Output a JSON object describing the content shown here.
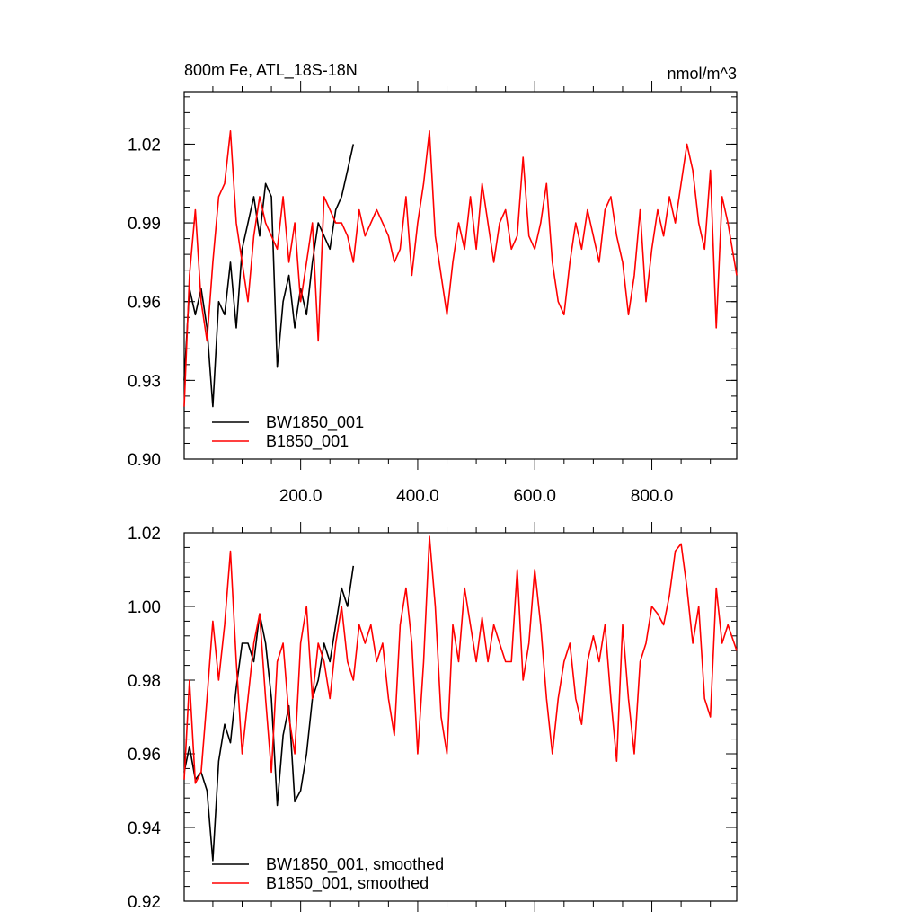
{
  "chart_data": [
    {
      "type": "line",
      "title": "800m Fe, ATL_18S-18N",
      "units": "nmol/m^3",
      "xlim": [
        1,
        945
      ],
      "ylim": [
        0.9,
        1.04
      ],
      "yticks": [
        0.9,
        0.93,
        0.96,
        0.99,
        1.02
      ],
      "ytick_labels": [
        "0.90",
        "0.93",
        "0.96",
        "0.99",
        "1.02"
      ],
      "xticks": [
        200,
        400,
        600,
        800
      ],
      "xtick_labels": [
        "200.0",
        "400.0",
        "600.0",
        "800.0"
      ],
      "legend": "bottom-left",
      "grid": false,
      "series": [
        {
          "name": "BW1850_001",
          "color": "#000000",
          "x": [
            1,
            10,
            20,
            30,
            40,
            50,
            60,
            70,
            80,
            90,
            100,
            110,
            120,
            130,
            140,
            150,
            160,
            170,
            180,
            190,
            200,
            210,
            220,
            230,
            240,
            250,
            260,
            270,
            280,
            290
          ],
          "y": [
            0.93,
            0.965,
            0.955,
            0.965,
            0.95,
            0.92,
            0.96,
            0.955,
            0.975,
            0.95,
            0.98,
            0.99,
            1.0,
            0.985,
            1.005,
            1.0,
            0.935,
            0.96,
            0.97,
            0.95,
            0.965,
            0.955,
            0.975,
            0.99,
            0.985,
            0.98,
            0.995,
            1.0,
            1.01,
            1.02
          ]
        },
        {
          "name": "B1850_001",
          "color": "#ff0000",
          "x": [
            1,
            10,
            20,
            30,
            40,
            50,
            60,
            70,
            80,
            90,
            100,
            110,
            120,
            130,
            140,
            150,
            160,
            170,
            180,
            190,
            200,
            210,
            220,
            230,
            240,
            250,
            260,
            270,
            280,
            290,
            300,
            310,
            320,
            330,
            340,
            350,
            360,
            370,
            380,
            390,
            400,
            410,
            420,
            430,
            440,
            450,
            460,
            470,
            480,
            490,
            500,
            510,
            520,
            530,
            540,
            550,
            560,
            570,
            580,
            590,
            600,
            610,
            620,
            630,
            640,
            650,
            660,
            670,
            680,
            690,
            700,
            710,
            720,
            730,
            740,
            750,
            760,
            770,
            780,
            790,
            800,
            810,
            820,
            830,
            840,
            850,
            860,
            870,
            880,
            890,
            900,
            910,
            920,
            930,
            945
          ],
          "y": [
            0.92,
            0.97,
            0.995,
            0.96,
            0.945,
            0.975,
            1.0,
            1.005,
            1.025,
            0.99,
            0.975,
            0.96,
            0.985,
            1.0,
            0.99,
            0.985,
            0.98,
            1.0,
            0.975,
            0.99,
            0.96,
            0.975,
            0.99,
            0.945,
            1.0,
            0.995,
            0.99,
            0.99,
            0.985,
            0.975,
            0.995,
            0.985,
            0.99,
            0.995,
            0.99,
            0.985,
            0.975,
            0.98,
            1.0,
            0.97,
            0.99,
            1.005,
            1.025,
            0.985,
            0.97,
            0.955,
            0.975,
            0.99,
            0.98,
            1.0,
            0.98,
            1.005,
            0.99,
            0.975,
            0.99,
            0.995,
            0.98,
            0.985,
            1.015,
            0.985,
            0.98,
            0.99,
            1.005,
            0.975,
            0.96,
            0.955,
            0.975,
            0.99,
            0.98,
            0.995,
            0.985,
            0.975,
            0.995,
            1.0,
            0.985,
            0.975,
            0.955,
            0.97,
            0.995,
            0.96,
            0.98,
            0.995,
            0.985,
            1.0,
            0.99,
            1.005,
            1.02,
            1.01,
            0.99,
            0.98,
            1.01,
            0.95,
            1.0,
            0.99,
            0.97
          ]
        }
      ]
    },
    {
      "type": "line",
      "xlim": [
        1,
        945
      ],
      "ylim": [
        0.92,
        1.02
      ],
      "yticks": [
        0.92,
        0.94,
        0.96,
        0.98,
        1.0,
        1.02
      ],
      "ytick_labels": [
        "0.92",
        "0.94",
        "0.96",
        "0.98",
        "1.00",
        "1.02"
      ],
      "legend": "bottom-left",
      "grid": false,
      "series": [
        {
          "name": "BW1850_001, smoothed",
          "color": "#000000",
          "x": [
            1,
            10,
            20,
            30,
            40,
            50,
            60,
            70,
            80,
            90,
            100,
            110,
            120,
            130,
            140,
            150,
            160,
            170,
            180,
            190,
            200,
            210,
            220,
            230,
            240,
            250,
            260,
            270,
            280,
            290
          ],
          "y": [
            0.955,
            0.962,
            0.953,
            0.955,
            0.95,
            0.931,
            0.958,
            0.968,
            0.963,
            0.978,
            0.99,
            0.99,
            0.985,
            0.998,
            0.99,
            0.975,
            0.946,
            0.965,
            0.973,
            0.947,
            0.95,
            0.96,
            0.975,
            0.98,
            0.99,
            0.985,
            0.995,
            1.005,
            1.0,
            1.011
          ]
        },
        {
          "name": "B1850_001, smoothed",
          "color": "#ff0000",
          "x": [
            1,
            10,
            20,
            30,
            40,
            50,
            60,
            70,
            80,
            90,
            100,
            110,
            120,
            130,
            140,
            150,
            160,
            170,
            180,
            190,
            200,
            210,
            220,
            230,
            240,
            250,
            260,
            270,
            280,
            290,
            300,
            310,
            320,
            330,
            340,
            350,
            360,
            370,
            380,
            390,
            400,
            410,
            420,
            430,
            440,
            450,
            460,
            470,
            480,
            490,
            500,
            510,
            520,
            530,
            540,
            550,
            560,
            570,
            580,
            590,
            600,
            610,
            620,
            630,
            640,
            650,
            660,
            670,
            680,
            690,
            700,
            710,
            720,
            730,
            740,
            750,
            760,
            770,
            780,
            790,
            800,
            810,
            820,
            830,
            840,
            850,
            860,
            870,
            880,
            890,
            900,
            910,
            920,
            930,
            945
          ],
          "y": [
            0.953,
            0.98,
            0.952,
            0.955,
            0.975,
            0.996,
            0.98,
            0.995,
            1.015,
            0.985,
            0.96,
            0.975,
            0.99,
            0.998,
            0.975,
            0.955,
            0.985,
            0.99,
            0.97,
            0.96,
            0.99,
            1.0,
            0.975,
            0.99,
            0.985,
            0.975,
            0.99,
            1.0,
            0.985,
            0.98,
            0.995,
            0.99,
            0.995,
            0.985,
            0.99,
            0.975,
            0.965,
            0.995,
            1.005,
            0.99,
            0.96,
            0.985,
            1.019,
            1.0,
            0.97,
            0.96,
            0.995,
            0.985,
            1.005,
            0.995,
            0.985,
            0.997,
            0.985,
            0.995,
            0.99,
            0.985,
            0.985,
            1.01,
            0.98,
            0.99,
            1.01,
            0.995,
            0.975,
            0.96,
            0.975,
            0.985,
            0.99,
            0.975,
            0.968,
            0.985,
            0.992,
            0.985,
            0.995,
            0.975,
            0.958,
            0.995,
            0.975,
            0.96,
            0.985,
            0.99,
            1.0,
            0.998,
            0.995,
            1.003,
            1.015,
            1.017,
            1.005,
            0.99,
            1.0,
            0.975,
            0.97,
            1.005,
            0.99,
            0.995,
            0.988
          ]
        }
      ]
    }
  ]
}
